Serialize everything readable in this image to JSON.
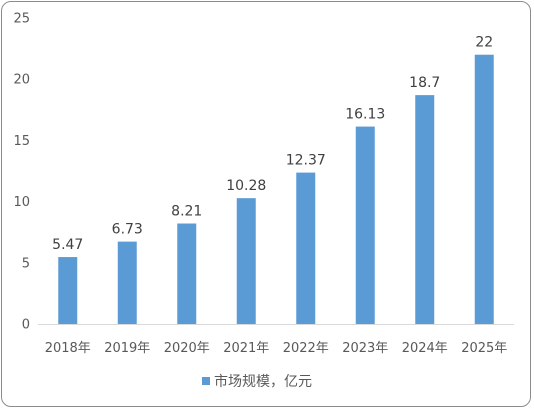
{
  "chart_data": {
    "type": "bar",
    "categories": [
      "2018年",
      "2019年",
      "2020年",
      "2021年",
      "2022年",
      "2023年",
      "2024年",
      "2025年"
    ],
    "series": [
      {
        "name": "市场规模，亿元",
        "values": [
          5.47,
          6.73,
          8.21,
          10.28,
          12.37,
          16.13,
          18.7,
          22
        ],
        "data_labels": [
          "5.47",
          "6.73",
          "8.21",
          "10.28",
          "12.37",
          "16.13",
          "18.7",
          "22"
        ]
      }
    ],
    "y_ticks": [
      "0",
      "5",
      "10",
      "15",
      "20",
      "25"
    ],
    "ylim": [
      0,
      25
    ],
    "grid": false,
    "legend_position": "bottom",
    "colors": {
      "bar": "#5b9bd5",
      "axis": "#d9d9d9",
      "text": "#595959",
      "border": "#8c8c8c"
    }
  }
}
